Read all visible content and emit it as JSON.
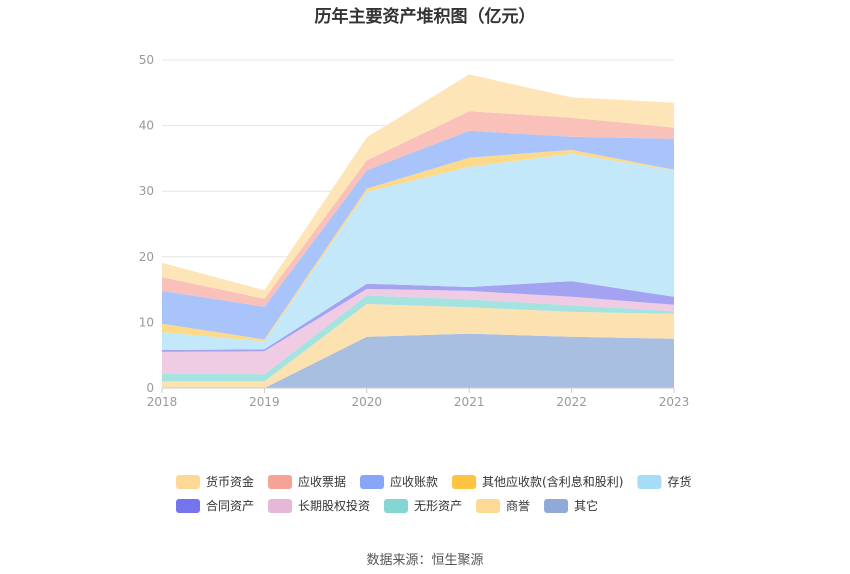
{
  "title": "历年主要资产堆积图（亿元）",
  "source": "数据来源：恒生聚源",
  "chart_data": {
    "type": "area",
    "stacked": true,
    "x": [
      "2018",
      "2019",
      "2020",
      "2021",
      "2022",
      "2023"
    ],
    "ylim": [
      0,
      50
    ],
    "yticks": [
      0,
      10,
      20,
      30,
      40,
      50
    ],
    "grid": true,
    "legend_position": "bottom",
    "series": [
      {
        "name": "其它",
        "color": "#a9bfe2",
        "values": [
          0.0,
          0.0,
          7.8,
          8.3,
          7.8,
          7.5
        ]
      },
      {
        "name": "商誉",
        "color": "#fde2b1",
        "values": [
          1.0,
          1.0,
          5.0,
          4.0,
          3.8,
          3.8
        ]
      },
      {
        "name": "无形资产",
        "color": "#a5e3e0",
        "values": [
          1.2,
          1.1,
          1.3,
          1.2,
          1.0,
          0.4
        ]
      },
      {
        "name": "长期股权投资",
        "color": "#f0cce4",
        "values": [
          3.3,
          3.5,
          1.0,
          1.3,
          1.3,
          1.0
        ]
      },
      {
        "name": "合同资产",
        "color": "#a3a3f2",
        "values": [
          0.3,
          0.3,
          0.8,
          0.6,
          2.4,
          1.2
        ]
      },
      {
        "name": "存货",
        "color": "#c3e8fa",
        "values": [
          2.7,
          1.2,
          14.0,
          18.3,
          19.4,
          19.3
        ]
      },
      {
        "name": "其他应收款(含利息和股利)",
        "color": "#fdd98a",
        "values": [
          1.3,
          0.3,
          0.5,
          1.4,
          0.6,
          0.1
        ]
      },
      {
        "name": "应收账款",
        "color": "#a9c4fb",
        "values": [
          5.0,
          5.0,
          2.8,
          4.1,
          2.0,
          4.7
        ]
      },
      {
        "name": "应收票据",
        "color": "#f9c1b9",
        "values": [
          2.1,
          1.2,
          1.5,
          3.0,
          2.9,
          1.7
        ]
      },
      {
        "name": "货币资金",
        "color": "#fde5b8",
        "values": [
          2.2,
          1.3,
          3.5,
          5.6,
          3.1,
          3.8
        ]
      }
    ],
    "legend": [
      {
        "name": "货币资金",
        "color": "#fdd995"
      },
      {
        "name": "应收票据",
        "color": "#f6a397"
      },
      {
        "name": "应收账款",
        "color": "#87a6f8"
      },
      {
        "name": "其他应收款(含利息和股利)",
        "color": "#fcc442"
      },
      {
        "name": "存货",
        "color": "#a6dcf6"
      },
      {
        "name": "合同资产",
        "color": "#7475ee"
      },
      {
        "name": "长期股权投资",
        "color": "#e6b8d8"
      },
      {
        "name": "无形资产",
        "color": "#84d6d3"
      },
      {
        "name": "商誉",
        "color": "#fdd995"
      },
      {
        "name": "其它",
        "color": "#8faad9"
      }
    ]
  }
}
